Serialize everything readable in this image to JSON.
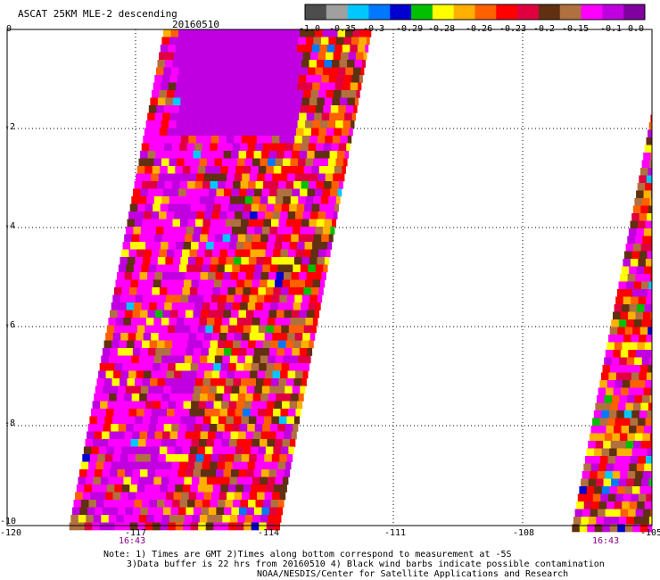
{
  "header": {
    "title": "ASCAT 25KM MLE-2 descending",
    "date": "20160510"
  },
  "colorbar": {
    "colors": [
      "#4d4d4d",
      "#a0a0a0",
      "#00c8ff",
      "#0078ff",
      "#0000d0",
      "#00c000",
      "#ffff00",
      "#ffb000",
      "#ff6000",
      "#ff0000",
      "#e00040",
      "#603010",
      "#b07040",
      "#ff00ff",
      "#c000e0",
      "#8000a0"
    ],
    "labels": [
      "-1.0",
      "-0.35",
      "-0.3",
      "-0.29",
      "-0.28",
      "-0.26",
      "-0.23",
      "-0.2",
      "-0.15",
      "-0.1",
      "0.0"
    ]
  },
  "axes": {
    "x_ticks": [
      "-120",
      "-117",
      "-114",
      "-111",
      "-108",
      "-105"
    ],
    "y_ticks": [
      "0",
      "-2",
      "-4",
      "-6",
      "-8",
      "-10"
    ]
  },
  "swaths": [
    {
      "time_label": "16:43"
    },
    {
      "time_label": "16:43"
    }
  ],
  "footer": {
    "line1": "Note: 1) Times are GMT 2)Times along bottom correspond to measurement at -5S",
    "line2": "3)Data buffer is 22 hrs from 20160510 4) Black wind barbs indicate possible contamination",
    "line3": "NOAA/NESDIS/Center for Satellite Applications and Research"
  }
}
